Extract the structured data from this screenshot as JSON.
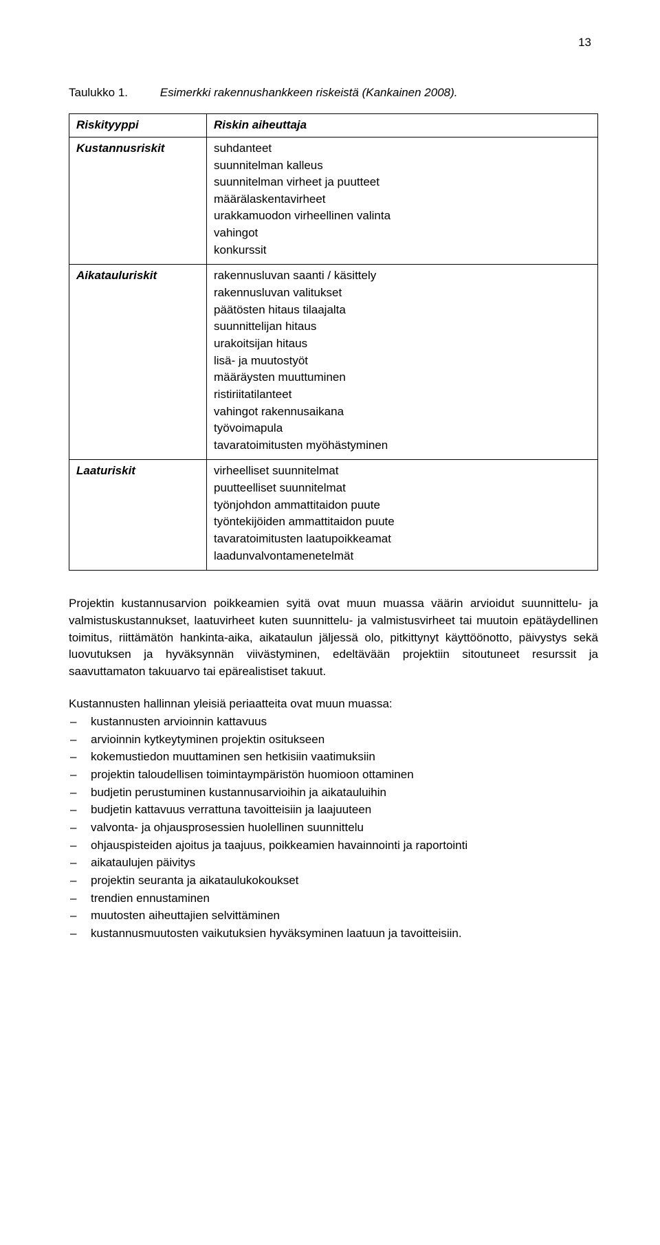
{
  "page_number": "13",
  "table_caption": {
    "label": "Taulukko 1.",
    "text": "Esimerkki rakennushankkeen riskeistä (Kankainen 2008)."
  },
  "table": {
    "header": {
      "col1": "Riskityyppi",
      "col2": "Riskin aiheuttaja"
    },
    "rows": [
      {
        "col1": "Kustannusriskit",
        "col2": [
          "suhdanteet",
          "suunnitelman kalleus",
          "suunnitelman virheet ja puutteet",
          "määrälaskentavirheet",
          "urakkamuodon virheellinen valinta",
          "vahingot",
          "konkurssit"
        ]
      },
      {
        "col1": "Aikatauluriskit",
        "col2": [
          "rakennusluvan saanti / käsittely",
          "rakennusluvan valitukset",
          "päätösten hitaus tilaajalta",
          "suunnittelijan hitaus",
          "urakoitsijan hitaus",
          "lisä- ja muutostyöt",
          "määräysten muuttuminen",
          "ristiriitatilanteet",
          "vahingot rakennusaikana",
          "työvoimapula",
          "tavaratoimitusten myöhästyminen"
        ]
      },
      {
        "col1": "Laaturiskit",
        "col2": [
          "virheelliset suunnitelmat",
          "puutteelliset suunnitelmat",
          "työnjohdon ammattitaidon puute",
          "työntekijöiden ammattitaidon puute",
          "tavaratoimitusten laatupoikkeamat",
          "laadunvalvontamenetelmät"
        ]
      }
    ]
  },
  "paragraph": "Projektin kustannusarvion poikkeamien syitä ovat muun muassa väärin arvioidut suunnittelu- ja valmistuskustannukset, laatuvirheet kuten suunnittelu- ja valmistusvirheet tai muutoin epätäydellinen toimitus, riittämätön hankinta-aika, aikataulun jäljessä olo, pitkittynyt käyttöönotto, päivystys sekä luovutuksen ja hyväksynnän viivästyminen, edeltävään projektiin sitoutuneet resurssit ja saavuttamaton takuuarvo tai epärealistiset takuut.",
  "list_intro": "Kustannusten hallinnan yleisiä periaatteita ovat muun muassa:",
  "bullets": [
    "kustannusten arvioinnin kattavuus",
    "arvioinnin kytkeytyminen projektin ositukseen",
    "kokemustiedon muuttaminen sen hetkisiin vaatimuksiin",
    "projektin taloudellisen toimintaympäristön huomioon ottaminen",
    "budjetin perustuminen kustannusarvioihin ja aikatauluihin",
    "budjetin kattavuus verrattuna tavoitteisiin ja laajuuteen",
    "valvonta- ja ohjausprosessien huolellinen suunnittelu",
    "ohjauspisteiden ajoitus ja taajuus, poikkeamien havainnointi ja raportointi",
    "aikataulujen päivitys",
    "projektin seuranta ja aikataulukokoukset",
    "trendien ennustaminen",
    "muutosten aiheuttajien selvittäminen",
    "kustannusmuutosten vaikutuksien hyväksyminen laatuun ja tavoitteisiin."
  ]
}
